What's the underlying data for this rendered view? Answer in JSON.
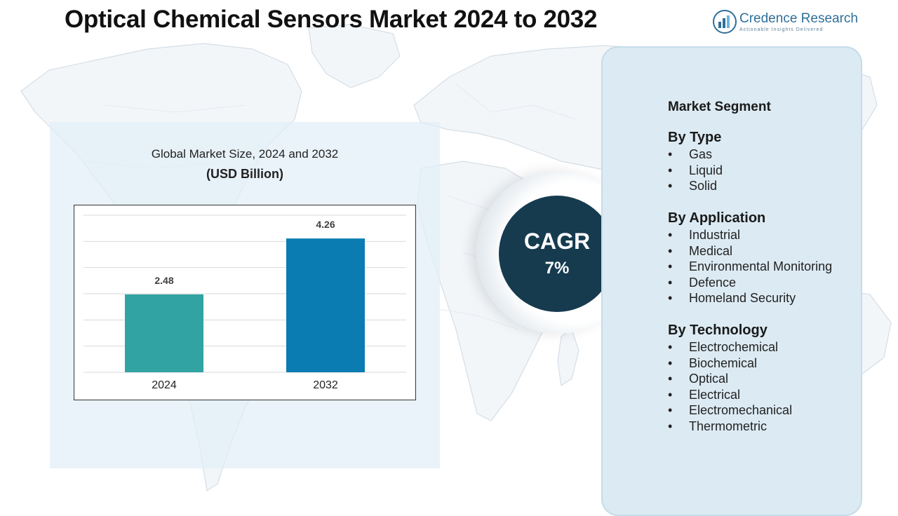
{
  "title": "Optical Chemical Sensors Market 2024 to 2032",
  "logo": {
    "name": "Credence Research",
    "tagline": "Actionable Insights Delivered"
  },
  "chart_data": {
    "type": "bar",
    "title": "Global Market Size, 2024 and 2032",
    "unit_label": "(USD Billion)",
    "categories": [
      "2024",
      "2032"
    ],
    "values": [
      2.48,
      4.26
    ],
    "data_labels": [
      "2.48",
      "4.26"
    ],
    "colors": [
      "#31a3a3",
      "#0a7cb1"
    ],
    "ylim": [
      0,
      5
    ],
    "grid": true,
    "xlabel": "",
    "ylabel": ""
  },
  "cagr": {
    "label": "CAGR",
    "value": "7%"
  },
  "segments": {
    "title": "Market Segment",
    "groups": [
      {
        "heading": "By Type",
        "items": [
          "Gas",
          "Liquid",
          "Solid"
        ]
      },
      {
        "heading": "By Application",
        "items": [
          "Industrial",
          "Medical",
          "Environmental Monitoring",
          "Defence",
          "Homeland Security"
        ]
      },
      {
        "heading": "By Technology",
        "items": [
          "Electrochemical",
          "Biochemical",
          "Optical",
          "Electrical",
          "Electromechanical",
          "Thermometric"
        ]
      }
    ]
  },
  "colors": {
    "cagr_circle": "#163b4f",
    "segment_panel": "#dceaf3",
    "chart_panel": "#e2eef7"
  }
}
